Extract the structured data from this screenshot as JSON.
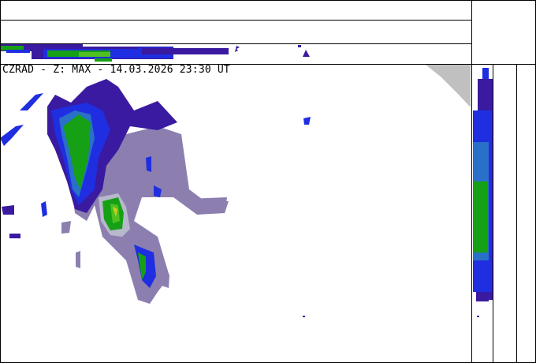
{
  "header": {
    "title": "CZRAD - Z: MAX - 14.03.2026 23:30 UT"
  },
  "colors": {
    "frame": "#000000",
    "out_of_range": "#c0c0c0",
    "echo_weak": "#8c7fb0",
    "echo_light_gray": "#b8b8cc",
    "echo_dark_blue": "#3a1aa0",
    "echo_blue": "#1e2ee0",
    "echo_mid_blue": "#2a70c8",
    "echo_green": "#16a016",
    "echo_light_green": "#50c020",
    "echo_yellow": "#c8d020"
  }
}
